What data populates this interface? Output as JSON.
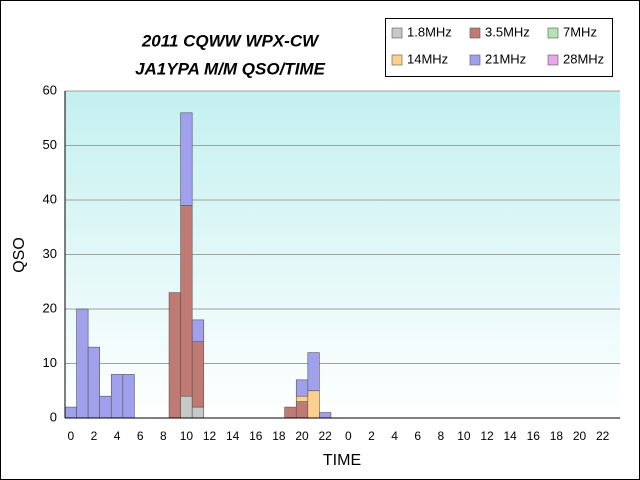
{
  "chart_data": {
    "type": "stacked_bar",
    "title": "2011 CQWW WPX-CW",
    "subtitle": "JA1YPA M/M  QSO/TIME",
    "x_label": "TIME",
    "y_label": "QSO",
    "categories": [
      "0",
      null,
      "2",
      null,
      "4",
      null,
      "6",
      null,
      "8",
      null,
      "10",
      null,
      "12",
      null,
      "14",
      null,
      "16",
      null,
      "18",
      null,
      "20",
      null,
      "22",
      null,
      "0",
      null,
      "2",
      null,
      "4",
      null,
      "6",
      null,
      "8",
      null,
      "10",
      null,
      "12",
      null,
      "14",
      null,
      "16",
      null,
      "18",
      null,
      "20",
      null,
      "22",
      null
    ],
    "ylim": [
      0,
      60
    ],
    "yticks": [
      0,
      10,
      20,
      30,
      40,
      50,
      60
    ],
    "grid": true,
    "legend": "top-right",
    "series": [
      {
        "name": "1.8MHz",
        "color": "#c8c8c8",
        "values": [
          0,
          0,
          0,
          0,
          0,
          0,
          0,
          0,
          0,
          0,
          4,
          2,
          0,
          0,
          0,
          0,
          0,
          0,
          0,
          0,
          0,
          0,
          0,
          0,
          0,
          0,
          0,
          0,
          0,
          0,
          0,
          0,
          0,
          0,
          0,
          0,
          0,
          0,
          0,
          0,
          0,
          0,
          0,
          0,
          0,
          0,
          0,
          0
        ]
      },
      {
        "name": "3.5MHz",
        "color": "#c07a74",
        "values": [
          0,
          0,
          0,
          0,
          0,
          0,
          0,
          0,
          0,
          23,
          35,
          12,
          0,
          0,
          0,
          0,
          0,
          0,
          0,
          2,
          3,
          0,
          0,
          0,
          0,
          0,
          0,
          0,
          0,
          0,
          0,
          0,
          0,
          0,
          0,
          0,
          0,
          0,
          0,
          0,
          0,
          0,
          0,
          0,
          0,
          0,
          0,
          0
        ]
      },
      {
        "name": "7MHz",
        "color": "#b4e4b4",
        "values": [
          0,
          0,
          0,
          0,
          0,
          0,
          0,
          0,
          0,
          0,
          0,
          0,
          0,
          0,
          0,
          0,
          0,
          0,
          0,
          0,
          0,
          0,
          0,
          0,
          0,
          0,
          0,
          0,
          0,
          0,
          0,
          0,
          0,
          0,
          0,
          0,
          0,
          0,
          0,
          0,
          0,
          0,
          0,
          0,
          0,
          0,
          0,
          0
        ]
      },
      {
        "name": "14MHz",
        "color": "#ffd08c",
        "values": [
          0,
          0,
          0,
          0,
          0,
          0,
          0,
          0,
          0,
          0,
          0,
          0,
          0,
          0,
          0,
          0,
          0,
          0,
          0,
          0,
          1,
          5,
          0,
          0,
          0,
          0,
          0,
          0,
          0,
          0,
          0,
          0,
          0,
          0,
          0,
          0,
          0,
          0,
          0,
          0,
          0,
          0,
          0,
          0,
          0,
          0,
          0,
          0
        ]
      },
      {
        "name": "21MHz",
        "color": "#a0a0ec",
        "values": [
          2,
          20,
          13,
          4,
          8,
          8,
          0,
          0,
          0,
          0,
          17,
          4,
          0,
          0,
          0,
          0,
          0,
          0,
          0,
          0,
          3,
          7,
          1,
          0,
          0,
          0,
          0,
          0,
          0,
          0,
          0,
          0,
          0,
          0,
          0,
          0,
          0,
          0,
          0,
          0,
          0,
          0,
          0,
          0,
          0,
          0,
          0,
          0
        ]
      },
      {
        "name": "28MHz",
        "color": "#e8a8e8",
        "values": [
          0,
          0,
          0,
          0,
          0,
          0,
          0,
          0,
          0,
          0,
          0,
          0,
          0,
          0,
          0,
          0,
          0,
          0,
          0,
          0,
          0,
          0,
          0,
          0,
          0,
          0,
          0,
          0,
          0,
          0,
          0,
          0,
          0,
          0,
          0,
          0,
          0,
          0,
          0,
          0,
          0,
          0,
          0,
          0,
          0,
          0,
          0,
          0
        ]
      }
    ]
  }
}
